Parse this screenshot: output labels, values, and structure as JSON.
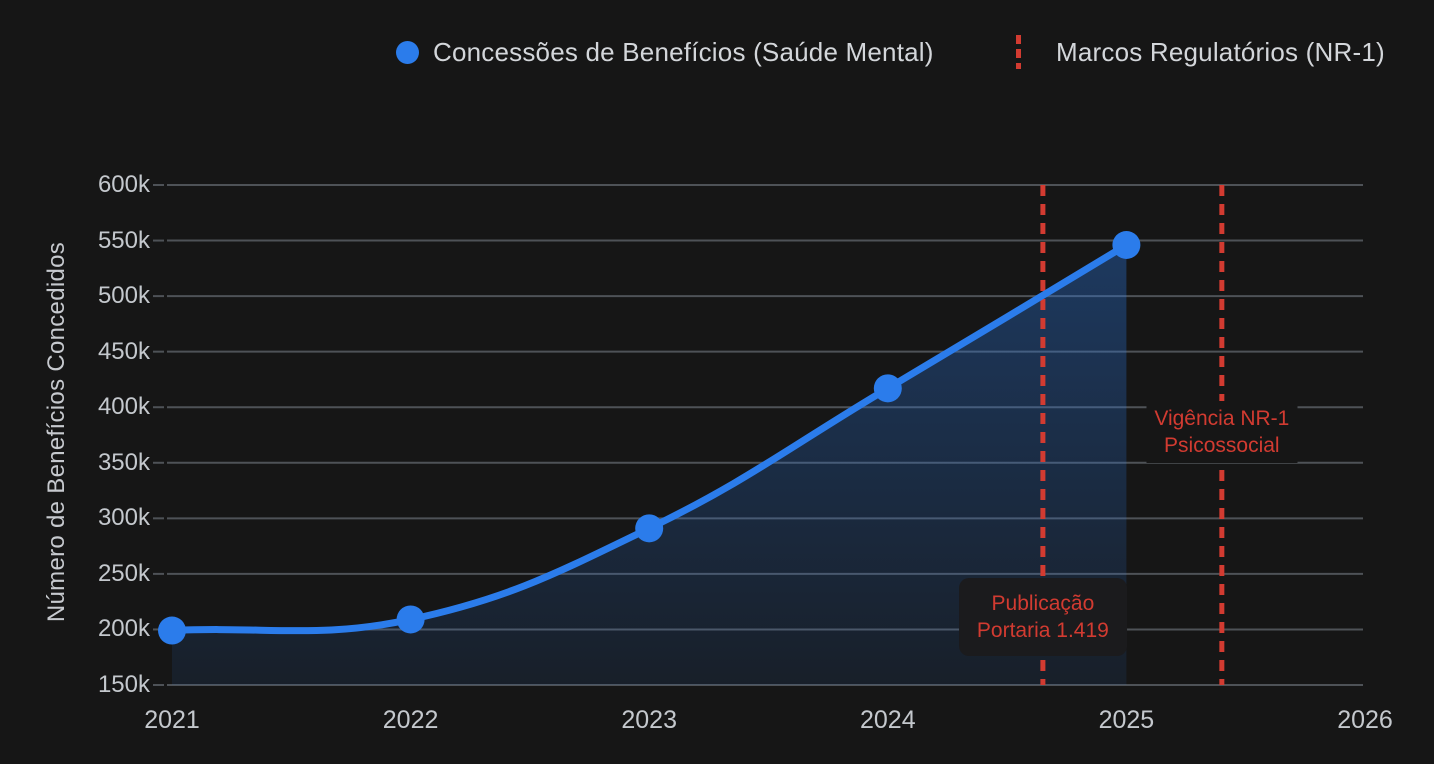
{
  "colors": {
    "background": "#161616",
    "accent_blue": "#2b7ceb",
    "accent_red": "#d23b31",
    "gridline": "#4e5257",
    "axis_text": "#c4c8cd",
    "legend_text": "#d3d6da",
    "annotation_box_bg": "#1b1b1d"
  },
  "legend": {
    "benefits_label": "Concessões de Benefícios (Saúde Mental)",
    "markers_label": "Marcos Regulatórios (NR-1)"
  },
  "chart_data": {
    "type": "area",
    "title": "",
    "xlabel": "",
    "ylabel": "Número de Benefícios Concedidos",
    "x": [
      2021,
      2022,
      2023,
      2024,
      2025
    ],
    "series": [
      {
        "name": "Concessões de Benefícios (Saúde Mental)",
        "values": [
          199000,
          209000,
          291000,
          417000,
          546000
        ]
      }
    ],
    "xlim": [
      2021,
      2026
    ],
    "ylim": [
      150000,
      600000
    ],
    "x_tick_labels": [
      "2021",
      "2022",
      "2023",
      "2024",
      "2025",
      "2026"
    ],
    "x_tick_values": [
      2021,
      2022,
      2023,
      2024,
      2025,
      2026
    ],
    "y_tick_labels": [
      "600k",
      "550k",
      "500k",
      "450k",
      "400k",
      "350k",
      "300k",
      "250k",
      "200k",
      "150k"
    ],
    "y_tick_values": [
      600000,
      550000,
      500000,
      450000,
      400000,
      350000,
      300000,
      250000,
      200000,
      150000
    ],
    "grid": "horizontal",
    "legend_position": "top",
    "line_tension": 0.4,
    "markers": [
      {
        "x": 2024.65,
        "style": "dashed-red-vertical",
        "boxed": true,
        "label_lines": [
          "Publicação",
          "Portaria 1.419"
        ]
      },
      {
        "x": 2025.4,
        "style": "dashed-red-vertical",
        "boxed": false,
        "label_lines": [
          "Vigência NR-1",
          "Psicossocial"
        ]
      }
    ]
  }
}
